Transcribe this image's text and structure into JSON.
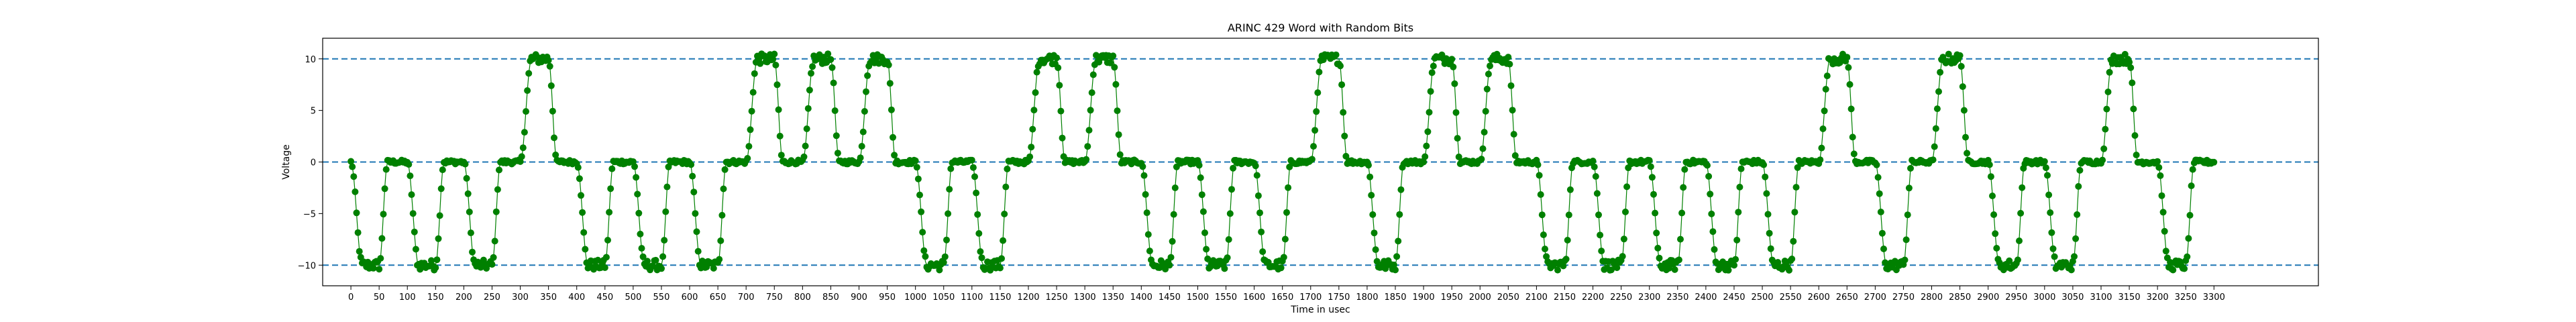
{
  "chart_data": {
    "type": "line",
    "title": "ARINC 429 Word with Random Bits",
    "xlabel": "Time in usec",
    "ylabel": "Voltage",
    "xlim": [
      -50,
      3485
    ],
    "ylim": [
      -12,
      12
    ],
    "xticks": [
      0,
      50,
      100,
      150,
      200,
      250,
      300,
      350,
      400,
      450,
      500,
      550,
      600,
      650,
      700,
      750,
      800,
      850,
      900,
      950,
      1000,
      1050,
      1100,
      1150,
      1200,
      1250,
      1300,
      1350,
      1400,
      1450,
      1500,
      1550,
      1600,
      1650,
      1700,
      1750,
      1800,
      1850,
      1900,
      1950,
      2000,
      2050,
      2100,
      2150,
      2200,
      2250,
      2300,
      2350,
      2400,
      2450,
      2500,
      2550,
      2600,
      2650,
      2700,
      2750,
      2800,
      2850,
      2900,
      2950,
      3000,
      3050,
      3100,
      3150,
      3200,
      3250,
      3300
    ],
    "yticks": [
      -10,
      -5,
      0,
      5,
      10
    ],
    "reference_lines": [
      10,
      0,
      -10
    ],
    "colors": {
      "series": "#008000",
      "reference": "#1f77b4",
      "axes": "#000000"
    },
    "grid": false,
    "series": [
      {
        "marker": "circle",
        "bit_period_usec": 100,
        "pulse_width_usec": 50,
        "bits": [
          0,
          0,
          0,
          1,
          0,
          0,
          0,
          1,
          1,
          1,
          0,
          0,
          1,
          1,
          0,
          0,
          0,
          1,
          0,
          1,
          1,
          0,
          0,
          0,
          0,
          0,
          1,
          0,
          1,
          0,
          0,
          1,
          0
        ]
      }
    ]
  }
}
